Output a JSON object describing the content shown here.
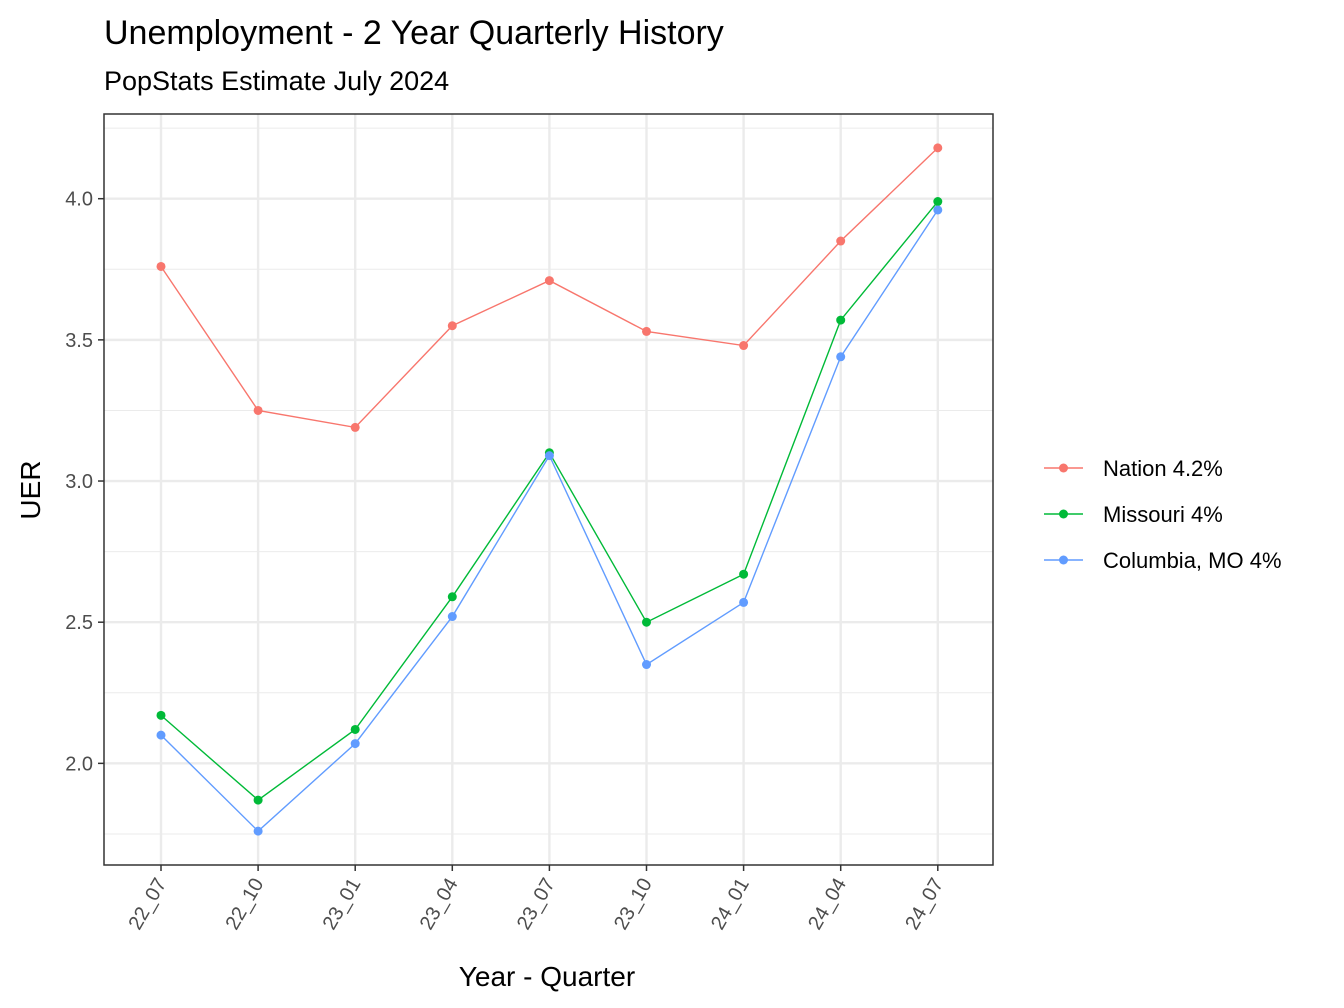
{
  "chart_data": {
    "type": "line",
    "title": "Unemployment - 2 Year Quarterly History",
    "subtitle": "PopStats Estimate July 2024",
    "xlabel": "Year - Quarter",
    "ylabel": "UER",
    "categories": [
      "22_07",
      "22_10",
      "23_01",
      "23_04",
      "23_07",
      "23_10",
      "24_01",
      "24_04",
      "24_07"
    ],
    "ylim": [
      1.64,
      4.3
    ],
    "yticks": [
      2.0,
      2.5,
      3.0,
      3.5,
      4.0
    ],
    "yticks_labels": [
      "2.0",
      "2.5",
      "3.0",
      "3.5",
      "4.0"
    ],
    "grid": true,
    "legend_position": "right",
    "series": [
      {
        "name": "Nation 4.2%",
        "color": "#F8766D",
        "values": [
          3.76,
          3.25,
          3.19,
          3.55,
          3.71,
          3.53,
          3.48,
          3.85,
          4.18
        ]
      },
      {
        "name": "Missouri 4%",
        "color": "#00BA38",
        "values": [
          2.17,
          1.87,
          2.12,
          2.59,
          3.1,
          2.5,
          2.67,
          3.57,
          3.99
        ]
      },
      {
        "name": "Columbia, MO 4%",
        "color": "#619CFF",
        "values": [
          2.1,
          1.76,
          2.07,
          2.52,
          3.09,
          2.35,
          2.57,
          3.44,
          3.96
        ]
      }
    ]
  }
}
